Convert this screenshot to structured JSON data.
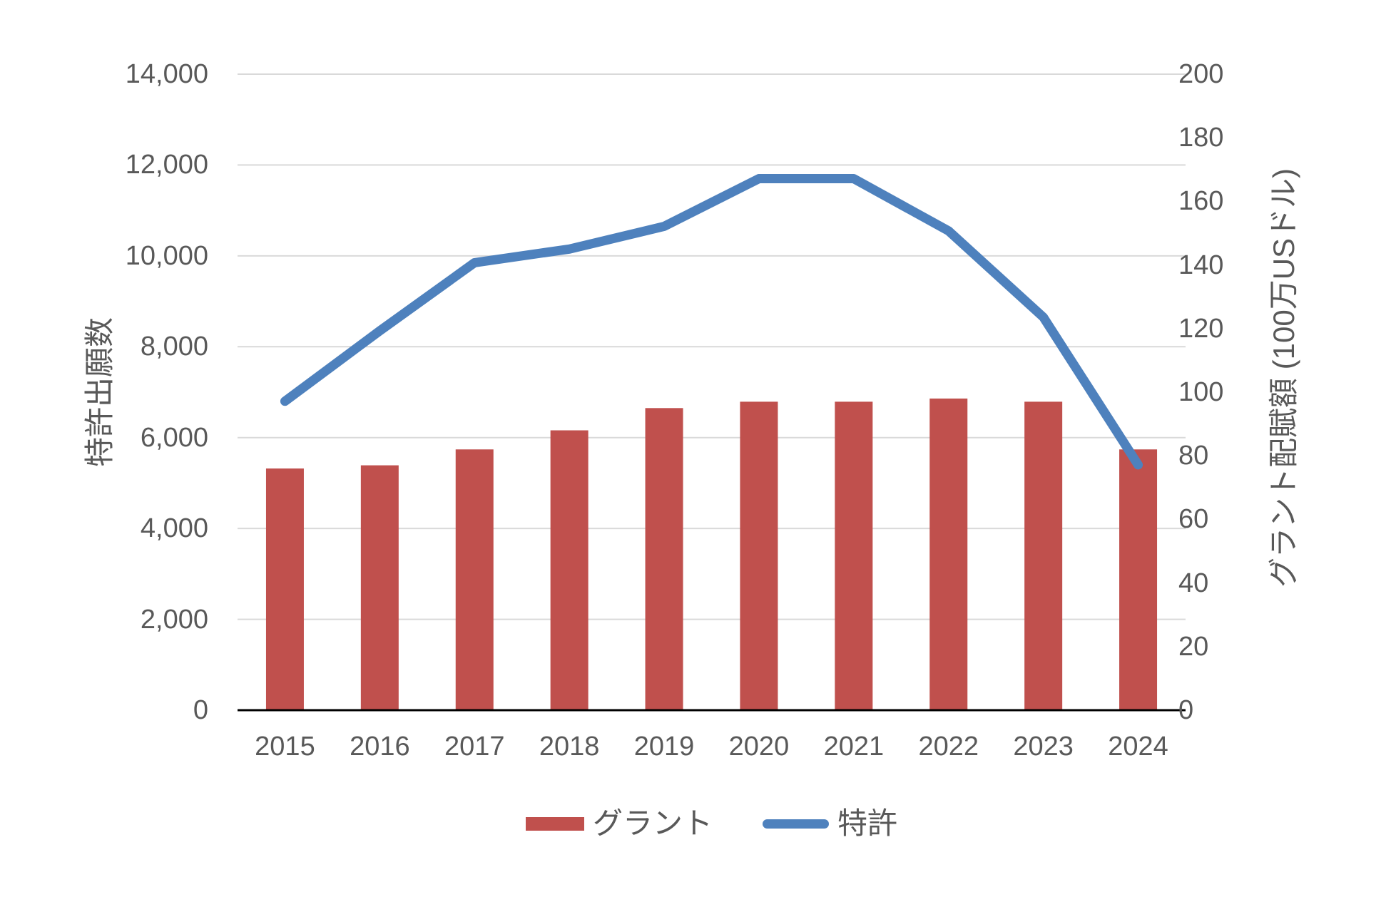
{
  "chart_data": {
    "type": "combo-bar-line",
    "title": "",
    "categories": [
      "2015",
      "2016",
      "2017",
      "2018",
      "2019",
      "2020",
      "2021",
      "2022",
      "2023",
      "2024"
    ],
    "series": [
      {
        "name": "グラント",
        "type": "bar",
        "axis": "right",
        "color": "#C0504D",
        "values": [
          76,
          77,
          82,
          88,
          95,
          97,
          97,
          98,
          97,
          82
        ]
      },
      {
        "name": "特許",
        "type": "line",
        "axis": "left",
        "color": "#4E81BD",
        "values": [
          6800,
          8350,
          9850,
          10150,
          10650,
          11700,
          11700,
          10550,
          8650,
          5400
        ]
      }
    ],
    "left_axis": {
      "title": "特許出願数",
      "min": 0,
      "max": 14000,
      "step": 2000,
      "tick_labels": [
        "0",
        "2,000",
        "4,000",
        "6,000",
        "8,000",
        "10,000",
        "12,000",
        "14,000"
      ]
    },
    "right_axis": {
      "title": "グラント配賦額 (100万USドル)",
      "min": 0,
      "max": 200,
      "step": 20,
      "tick_labels": [
        "0",
        "20",
        "40",
        "60",
        "80",
        "100",
        "120",
        "140",
        "160",
        "180",
        "200"
      ]
    },
    "legend_position": "bottom",
    "grid": true,
    "styles": {
      "grid_color": "#D9D9D9",
      "axis_line_color": "#000000",
      "text_color": "#595959",
      "background": "#FFFFFF"
    }
  }
}
